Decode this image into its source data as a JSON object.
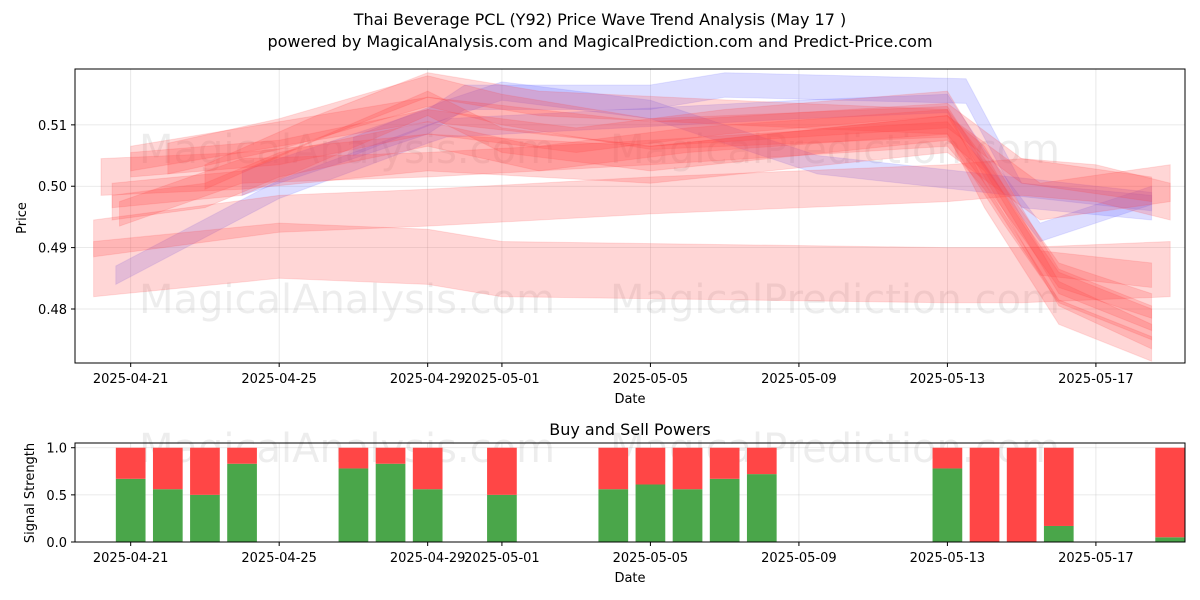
{
  "title_line1": "Thai Beverage PCL (Y92) Price Wave Trend Analysis (May 17 )",
  "title_line2": "powered by MagicalAnalysis.com and MagicalPrediction.com and Predict-Price.com",
  "watermarks": [
    "MagicalAnalysis.com",
    "MagicalPrediction.com"
  ],
  "colors": {
    "buy": "#4aa64a",
    "sell": "#ff4646",
    "red_band": "#ff4444",
    "blue_band": "#6666ff"
  },
  "chart_data": [
    {
      "type": "area",
      "title": "",
      "xlabel": "Date",
      "ylabel": "Price",
      "x_range_days": [
        -1.5,
        28.4
      ],
      "ylim": [
        0.4712,
        0.5191
      ],
      "x_ticks": [
        {
          "day": 0,
          "label": "2025-04-21"
        },
        {
          "day": 4,
          "label": "2025-04-25"
        },
        {
          "day": 8,
          "label": "2025-04-29"
        },
        {
          "day": 10,
          "label": "2025-05-01"
        },
        {
          "day": 14,
          "label": "2025-05-05"
        },
        {
          "day": 18,
          "label": "2025-05-09"
        },
        {
          "day": 22,
          "label": "2025-05-13"
        },
        {
          "day": 26,
          "label": "2025-05-17"
        }
      ],
      "y_ticks": [
        {
          "value": 0.48,
          "label": "0.48"
        },
        {
          "value": 0.49,
          "label": "0.49"
        },
        {
          "value": 0.5,
          "label": "0.50"
        },
        {
          "value": 0.51,
          "label": "0.51"
        }
      ],
      "grid": true,
      "series": [
        {
          "name": "wave-blue-1",
          "color": "blue",
          "x": [
            -0.4,
            4,
            8,
            8.5,
            18,
            22,
            23,
            24.5,
            27.5
          ],
          "y": [
            0.4855,
            0.4995,
            0.5085,
            0.5095,
            0.5125,
            0.5135,
            0.5045,
            0.4925,
            0.4985
          ],
          "width": 0.003
        },
        {
          "name": "wave-blue-2",
          "color": "blue",
          "x": [
            3,
            8,
            9,
            14,
            16,
            22.5,
            24,
            27.5
          ],
          "y": [
            0.5005,
            0.5105,
            0.5145,
            0.5145,
            0.5165,
            0.5155,
            0.4985,
            0.4965
          ],
          "width": 0.004
        },
        {
          "name": "wave-blue-3",
          "color": "blue",
          "x": [
            6,
            8.5,
            10,
            14,
            16,
            18.5,
            27.5
          ],
          "y": [
            0.5065,
            0.5125,
            0.5155,
            0.5125,
            0.5085,
            0.5035,
            0.4975
          ],
          "width": 0.003
        },
        {
          "name": "wave-red-1",
          "color": "red",
          "x": [
            -0.8,
            3,
            8,
            14,
            22,
            24.5,
            28
          ],
          "y": [
            0.5015,
            0.5025,
            0.5055,
            0.5035,
            0.5085,
            0.4975,
            0.5005
          ],
          "width": 0.006
        },
        {
          "name": "wave-red-2",
          "color": "red",
          "x": [
            -1,
            4,
            8,
            14,
            22,
            24,
            26,
            28
          ],
          "y": [
            0.4915,
            0.4955,
            0.4965,
            0.4985,
            0.5005,
            0.5015,
            0.5005,
            0.4975
          ],
          "width": 0.006
        },
        {
          "name": "wave-red-3",
          "color": "red",
          "x": [
            -1,
            4,
            8,
            10,
            22,
            24,
            28
          ],
          "y": [
            0.4865,
            0.4895,
            0.4885,
            0.4865,
            0.4855,
            0.4855,
            0.4865
          ],
          "width": 0.009
        },
        {
          "name": "wave-red-4",
          "color": "red",
          "x": [
            -0.5,
            3,
            8,
            10,
            14,
            22,
            23,
            25,
            27.5
          ],
          "y": [
            0.4985,
            0.5005,
            0.5135,
            0.5075,
            0.5045,
            0.5095,
            0.5045,
            0.4845,
            0.4785
          ],
          "width": 0.004
        },
        {
          "name": "wave-red-5",
          "color": "red",
          "x": [
            -0.5,
            2,
            4,
            8,
            11,
            15,
            22,
            23,
            25,
            27.5
          ],
          "y": [
            0.4965,
            0.4985,
            0.5035,
            0.5085,
            0.5045,
            0.5075,
            0.5105,
            0.5025,
            0.4855,
            0.4805
          ],
          "width": 0.004
        },
        {
          "name": "wave-red-6",
          "color": "red",
          "x": [
            0,
            4,
            8,
            12,
            16,
            22,
            23,
            25,
            27.5
          ],
          "y": [
            0.5035,
            0.5055,
            0.5105,
            0.5075,
            0.5105,
            0.5135,
            0.5035,
            0.4825,
            0.4755
          ],
          "width": 0.004
        },
        {
          "name": "wave-red-7",
          "color": "red",
          "x": [
            1,
            4,
            8,
            10,
            14,
            22,
            23.5,
            25,
            27.5
          ],
          "y": [
            0.5045,
            0.5085,
            0.5155,
            0.5125,
            0.5085,
            0.5105,
            0.4965,
            0.4835,
            0.4775
          ],
          "width": 0.005
        },
        {
          "name": "wave-red-8",
          "color": "red",
          "x": [
            -0.3,
            3,
            8,
            14,
            22,
            23,
            24.5,
            27.5
          ],
          "y": [
            0.4955,
            0.5025,
            0.5035,
            0.5055,
            0.5085,
            0.5015,
            0.4875,
            0.4855
          ],
          "width": 0.004
        },
        {
          "name": "wave-red-9",
          "color": "red",
          "x": [
            2,
            5,
            8,
            11,
            18,
            22,
            23,
            25,
            27.5
          ],
          "y": [
            0.5015,
            0.5095,
            0.5165,
            0.5135,
            0.5115,
            0.5105,
            0.4985,
            0.4795,
            0.4735
          ],
          "width": 0.004
        },
        {
          "name": "wave-red-10",
          "color": "red",
          "x": [
            0,
            4,
            8,
            14,
            22,
            24,
            27.5
          ],
          "y": [
            0.5045,
            0.5085,
            0.5125,
            0.5085,
            0.5115,
            0.5025,
            0.4995
          ],
          "width": 0.004
        }
      ]
    },
    {
      "type": "bar",
      "title": "Buy and Sell Powers",
      "xlabel": "Date",
      "ylabel": "Signal Strength",
      "ylim": [
        0,
        1.05
      ],
      "x_range_days": [
        -1.5,
        28.4
      ],
      "y_ticks": [
        {
          "value": 0.0,
          "label": "0.0"
        },
        {
          "value": 0.5,
          "label": "0.5"
        },
        {
          "value": 1.0,
          "label": "1.0"
        }
      ],
      "x_ticks": [
        {
          "day": 0,
          "label": "2025-04-21"
        },
        {
          "day": 4,
          "label": "2025-04-25"
        },
        {
          "day": 8,
          "label": "2025-04-29"
        },
        {
          "day": 10,
          "label": "2025-05-01"
        },
        {
          "day": 14,
          "label": "2025-05-05"
        },
        {
          "day": 18,
          "label": "2025-05-09"
        },
        {
          "day": 22,
          "label": "2025-05-13"
        },
        {
          "day": 26,
          "label": "2025-05-17"
        }
      ],
      "grid": true,
      "series": [
        {
          "name": "Buy",
          "days": [
            0,
            1,
            2,
            3,
            6,
            7,
            8,
            10,
            13,
            14,
            15,
            16,
            17,
            22,
            23,
            24,
            25,
            28
          ],
          "values": [
            0.67,
            0.56,
            0.5,
            0.83,
            0.78,
            0.83,
            0.56,
            0.5,
            0.56,
            0.61,
            0.56,
            0.67,
            0.72,
            0.78,
            0.0,
            0.0,
            0.17,
            0.05
          ]
        },
        {
          "name": "Sell",
          "days": [
            0,
            1,
            2,
            3,
            6,
            7,
            8,
            10,
            13,
            14,
            15,
            16,
            17,
            22,
            23,
            24,
            25,
            28
          ],
          "values": [
            0.33,
            0.44,
            0.5,
            0.17,
            0.22,
            0.17,
            0.44,
            0.5,
            0.44,
            0.39,
            0.44,
            0.33,
            0.28,
            0.22,
            1.0,
            1.0,
            0.83,
            0.95
          ]
        }
      ]
    }
  ]
}
